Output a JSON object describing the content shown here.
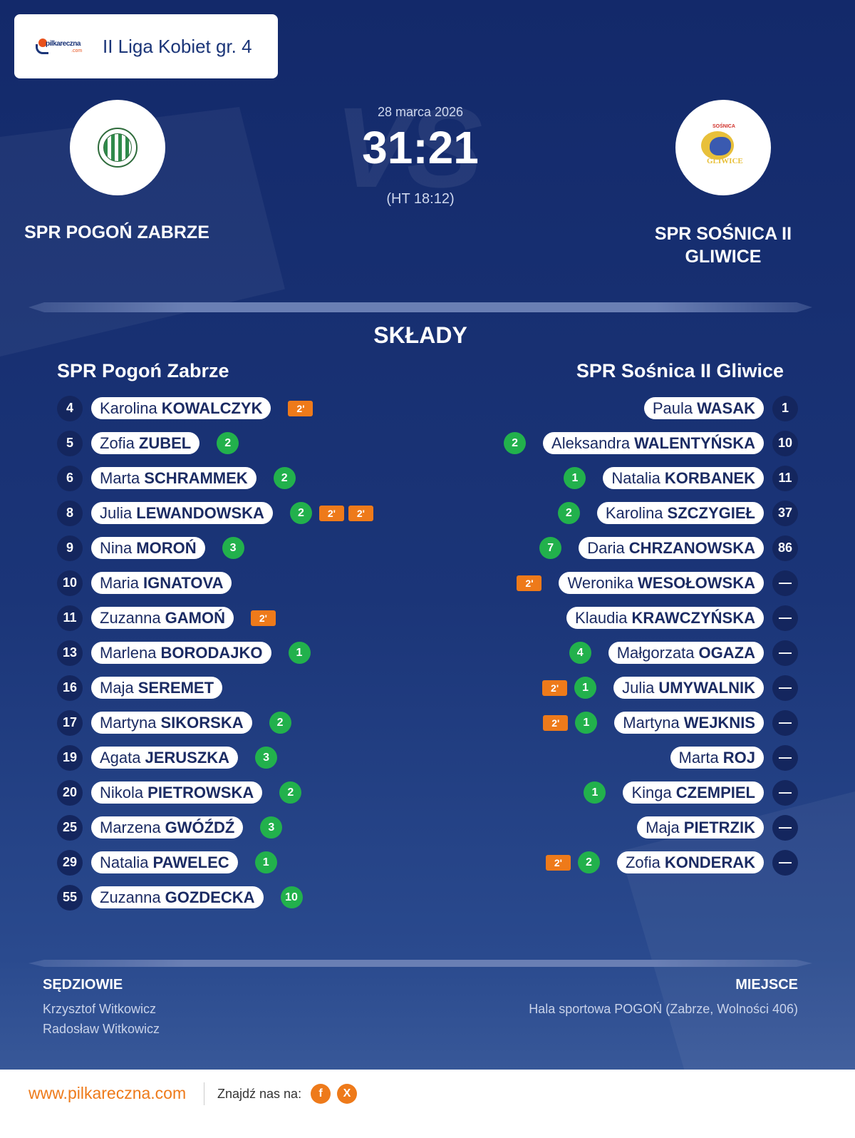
{
  "league": {
    "brand": "pilkareczna",
    "brand_suffix": ".com",
    "name": "II Liga Kobiet gr. 4"
  },
  "match": {
    "date": "28 marca 2026",
    "score": "31:21",
    "halftime": "(HT 18:12)",
    "vs_watermark": "VS",
    "home_team": "SPR POGOŃ ZABRZE",
    "away_team": "SPR SOŚNICA II GLIWICE",
    "away_badge_arc": "SOŚNICA",
    "away_badge_text": "GLIWICE"
  },
  "lineups": {
    "title": "SKŁADY",
    "home_title": "SPR Pogoń Zabrze",
    "away_title": "SPR Sośnica II Gliwice",
    "home": [
      {
        "num": "4",
        "first": "Karolina",
        "last": "KOWALCZYK",
        "goals": "",
        "pens": [
          "2'"
        ]
      },
      {
        "num": "5",
        "first": "Zofia",
        "last": "ZUBEL",
        "goals": "2",
        "pens": []
      },
      {
        "num": "6",
        "first": "Marta",
        "last": "SCHRAMMEK",
        "goals": "2",
        "pens": []
      },
      {
        "num": "8",
        "first": "Julia",
        "last": "LEWANDOWSKA",
        "goals": "2",
        "pens": [
          "2'",
          "2'"
        ]
      },
      {
        "num": "9",
        "first": "Nina",
        "last": "MOROŃ",
        "goals": "3",
        "pens": []
      },
      {
        "num": "10",
        "first": "Maria",
        "last": "IGNATOVA",
        "goals": "",
        "pens": []
      },
      {
        "num": "11",
        "first": "Zuzanna",
        "last": "GAMOŃ",
        "goals": "",
        "pens": [
          "2'"
        ]
      },
      {
        "num": "13",
        "first": "Marlena",
        "last": "BORODAJKO",
        "goals": "1",
        "pens": []
      },
      {
        "num": "16",
        "first": "Maja",
        "last": "SEREMET",
        "goals": "",
        "pens": []
      },
      {
        "num": "17",
        "first": "Martyna",
        "last": "SIKORSKA",
        "goals": "2",
        "pens": []
      },
      {
        "num": "19",
        "first": "Agata",
        "last": "JERUSZKA",
        "goals": "3",
        "pens": []
      },
      {
        "num": "20",
        "first": "Nikola",
        "last": "PIETROWSKA",
        "goals": "2",
        "pens": []
      },
      {
        "num": "25",
        "first": "Marzena",
        "last": "GWÓŹDŹ",
        "goals": "3",
        "pens": []
      },
      {
        "num": "29",
        "first": "Natalia",
        "last": "PAWELEC",
        "goals": "1",
        "pens": []
      },
      {
        "num": "55",
        "first": "Zuzanna",
        "last": "GOZDECKA",
        "goals": "10",
        "pens": []
      }
    ],
    "away": [
      {
        "num": "1",
        "first": "Paula",
        "last": "WASAK",
        "goals": "",
        "pens": []
      },
      {
        "num": "10",
        "first": "Aleksandra",
        "last": "WALENTYŃSKA",
        "goals": "2",
        "pens": []
      },
      {
        "num": "11",
        "first": "Natalia",
        "last": "KORBANEK",
        "goals": "1",
        "pens": []
      },
      {
        "num": "37",
        "first": "Karolina",
        "last": "SZCZYGIEŁ",
        "goals": "2",
        "pens": []
      },
      {
        "num": "86",
        "first": "Daria",
        "last": "CHRZANOWSKA",
        "goals": "7",
        "pens": []
      },
      {
        "num": "—",
        "first": "Weronika",
        "last": "WESOŁOWSKA",
        "goals": "",
        "pens": [
          "2'"
        ]
      },
      {
        "num": "—",
        "first": "Klaudia",
        "last": "KRAWCZYŃSKA",
        "goals": "",
        "pens": []
      },
      {
        "num": "—",
        "first": "Małgorzata",
        "last": "OGAZA",
        "goals": "4",
        "pens": []
      },
      {
        "num": "—",
        "first": "Julia",
        "last": "UMYWALNIK",
        "goals": "1",
        "pens": [
          "2'"
        ]
      },
      {
        "num": "—",
        "first": "Martyna",
        "last": "WEJKNIS",
        "goals": "1",
        "pens": [
          "2'"
        ]
      },
      {
        "num": "—",
        "first": "Marta",
        "last": "ROJ",
        "goals": "",
        "pens": []
      },
      {
        "num": "—",
        "first": "Kinga",
        "last": "CZEMPIEL",
        "goals": "1",
        "pens": []
      },
      {
        "num": "—",
        "first": "Maja",
        "last": "PIETRZIK",
        "goals": "",
        "pens": []
      },
      {
        "num": "—",
        "first": "Zofia",
        "last": "KONDERAK",
        "goals": "2",
        "pens": [
          "2'"
        ]
      }
    ]
  },
  "officials": {
    "referees_heading": "SĘDZIOWIE",
    "referees": [
      "Krzysztof Witkowicz",
      "Radosław Witkowicz"
    ],
    "venue_heading": "MIEJSCE",
    "venue": "Hala sportowa POGOŃ (Zabrze, Wolności 406)"
  },
  "footer": {
    "site": "www.pilkareczna.com",
    "find_us": "Znajdź nas na:",
    "facebook_label": "f",
    "x_label": "X"
  },
  "colors": {
    "background": "#13296a",
    "goal": "#22b14c",
    "penalty": "#ee7a1a",
    "accent": "#ee7a1a"
  }
}
